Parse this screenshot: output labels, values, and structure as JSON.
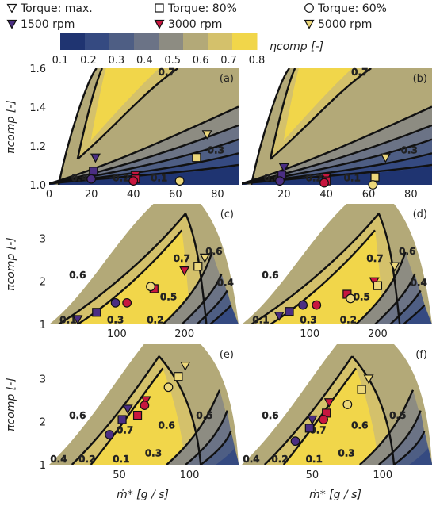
{
  "legend": {
    "markers": [
      {
        "label": "Torque: max.",
        "shape": "triangle-down"
      },
      {
        "label": "Torque: 80%",
        "shape": "square"
      },
      {
        "label": "Torque: 60%",
        "shape": "circle"
      }
    ],
    "speeds": [
      {
        "label": "1500 rpm",
        "color": "#4b2e83"
      },
      {
        "label": "3000 rpm",
        "color": "#c8163f"
      },
      {
        "label": "5000 rpm",
        "color": "#ecd77a"
      }
    ]
  },
  "colorbar": {
    "label": "ηcomp [-]",
    "ticks": [
      "0.1",
      "0.2",
      "0.3",
      "0.4",
      "0.5",
      "0.6",
      "0.7",
      "0.8"
    ],
    "colors": [
      "#1f3471",
      "#354a81",
      "#4e5e84",
      "#6b7386",
      "#8d8c82",
      "#b3a978",
      "#d4c16b",
      "#f1d64a"
    ]
  },
  "axes": {
    "ylabel": "πcomp [-]",
    "xlabel": "ṁ* [g / s]"
  },
  "chart_data": [
    {
      "panel": "(a)",
      "type": "contour",
      "xlim": [
        0,
        90
      ],
      "ylim": [
        1.0,
        1.6
      ],
      "xticks": [
        "0",
        "20",
        "40",
        "60",
        "80"
      ],
      "yticks": [
        "1.0",
        "1.2",
        "1.4",
        "1.6"
      ],
      "contour_labels": [
        "0.7",
        "0.3",
        "0.4",
        "0.2",
        "0.1"
      ],
      "points": [
        {
          "speed": "1500 rpm",
          "torque": "max.",
          "x": 22,
          "y": 1.14
        },
        {
          "speed": "1500 rpm",
          "torque": "80%",
          "x": 21,
          "y": 1.07
        },
        {
          "speed": "1500 rpm",
          "torque": "60%",
          "x": 20,
          "y": 1.03
        },
        {
          "speed": "3000 rpm",
          "torque": "max.",
          "x": 41,
          "y": 1.05
        },
        {
          "speed": "3000 rpm",
          "torque": "80%",
          "x": 41,
          "y": 1.03
        },
        {
          "speed": "3000 rpm",
          "torque": "60%",
          "x": 40,
          "y": 1.02
        },
        {
          "speed": "5000 rpm",
          "torque": "max.",
          "x": 75,
          "y": 1.26
        },
        {
          "speed": "5000 rpm",
          "torque": "80%",
          "x": 70,
          "y": 1.14
        },
        {
          "speed": "5000 rpm",
          "torque": "60%",
          "x": 62,
          "y": 1.02
        }
      ]
    },
    {
      "panel": "(b)",
      "type": "contour",
      "xlim": [
        0,
        90
      ],
      "ylim": [
        1.0,
        1.6
      ],
      "xticks": [
        "20",
        "40",
        "60",
        "80"
      ],
      "contour_labels": [
        "0.7",
        "0.3",
        "0.4",
        "0.2",
        "0.1"
      ],
      "points": [
        {
          "speed": "1500 rpm",
          "torque": "max.",
          "x": 20,
          "y": 1.09
        },
        {
          "speed": "1500 rpm",
          "torque": "80%",
          "x": 19,
          "y": 1.05
        },
        {
          "speed": "1500 rpm",
          "torque": "60%",
          "x": 18,
          "y": 1.02
        },
        {
          "speed": "3000 rpm",
          "torque": "max.",
          "x": 40,
          "y": 1.04
        },
        {
          "speed": "3000 rpm",
          "torque": "80%",
          "x": 40,
          "y": 1.02
        },
        {
          "speed": "3000 rpm",
          "torque": "60%",
          "x": 39,
          "y": 1.01
        },
        {
          "speed": "5000 rpm",
          "torque": "max.",
          "x": 68,
          "y": 1.14
        },
        {
          "speed": "5000 rpm",
          "torque": "80%",
          "x": 63,
          "y": 1.04
        },
        {
          "speed": "5000 rpm",
          "torque": "60%",
          "x": 62,
          "y": 1.0
        }
      ]
    },
    {
      "panel": "(c)",
      "type": "contour",
      "xlim": [
        0,
        280
      ],
      "ylim": [
        1,
        3.8
      ],
      "xticks": [
        "100",
        "200"
      ],
      "yticks": [
        "1",
        "2",
        "3"
      ],
      "contour_labels": [
        "0.6",
        "0.7",
        "0.6",
        "0.5",
        "0.4",
        "0.1",
        "0.3",
        "0.2"
      ],
      "points": [
        {
          "speed": "1500 rpm",
          "torque": "max.",
          "x": 42,
          "y": 1.12
        },
        {
          "speed": "1500 rpm",
          "torque": "80%",
          "x": 70,
          "y": 1.28
        },
        {
          "speed": "1500 rpm",
          "torque": "60%",
          "x": 98,
          "y": 1.5
        },
        {
          "speed": "3000 rpm",
          "torque": "max.",
          "x": 200,
          "y": 2.25
        },
        {
          "speed": "3000 rpm",
          "torque": "80%",
          "x": 155,
          "y": 1.83
        },
        {
          "speed": "3000 rpm",
          "torque": "60%",
          "x": 115,
          "y": 1.5
        },
        {
          "speed": "5000 rpm",
          "torque": "max.",
          "x": 230,
          "y": 2.55
        },
        {
          "speed": "5000 rpm",
          "torque": "80%",
          "x": 220,
          "y": 2.35
        },
        {
          "speed": "5000 rpm",
          "torque": "60%",
          "x": 150,
          "y": 1.88
        }
      ]
    },
    {
      "panel": "(d)",
      "type": "contour",
      "xlim": [
        0,
        280
      ],
      "ylim": [
        1,
        3.8
      ],
      "xticks": [
        "100",
        "200"
      ],
      "contour_labels": [
        "0.6",
        "0.7",
        "0.6",
        "0.5",
        "0.4",
        "0.1",
        "0.3",
        "0.2"
      ],
      "points": [
        {
          "speed": "1500 rpm",
          "torque": "max.",
          "x": 55,
          "y": 1.2
        },
        {
          "speed": "1500 rpm",
          "torque": "80%",
          "x": 70,
          "y": 1.3
        },
        {
          "speed": "1500 rpm",
          "torque": "60%",
          "x": 90,
          "y": 1.45
        },
        {
          "speed": "3000 rpm",
          "torque": "max.",
          "x": 195,
          "y": 2.0
        },
        {
          "speed": "3000 rpm",
          "torque": "80%",
          "x": 155,
          "y": 1.7
        },
        {
          "speed": "3000 rpm",
          "torque": "60%",
          "x": 110,
          "y": 1.45
        },
        {
          "speed": "5000 rpm",
          "torque": "max.",
          "x": 225,
          "y": 2.35
        },
        {
          "speed": "5000 rpm",
          "torque": "80%",
          "x": 200,
          "y": 1.9
        },
        {
          "speed": "5000 rpm",
          "torque": "60%",
          "x": 160,
          "y": 1.6
        }
      ]
    },
    {
      "panel": "(e)",
      "type": "contour",
      "xlim": [
        0,
        135
      ],
      "ylim": [
        1,
        3.8
      ],
      "xticks": [
        "50",
        "100"
      ],
      "yticks": [
        "1",
        "2",
        "3"
      ],
      "contour_labels": [
        "0.6",
        "0.7",
        "0.6",
        "0.5",
        "0.4",
        "0.2",
        "0.1",
        "0.3"
      ],
      "points": [
        {
          "speed": "1500 rpm",
          "torque": "max.",
          "x": 56,
          "y": 2.3
        },
        {
          "speed": "1500 rpm",
          "torque": "80%",
          "x": 52,
          "y": 2.05
        },
        {
          "speed": "1500 rpm",
          "torque": "60%",
          "x": 43,
          "y": 1.7
        },
        {
          "speed": "3000 rpm",
          "torque": "max.",
          "x": 69,
          "y": 2.5
        },
        {
          "speed": "3000 rpm",
          "torque": "80%",
          "x": 63,
          "y": 2.15
        },
        {
          "speed": "3000 rpm",
          "torque": "60%",
          "x": 68,
          "y": 2.38
        },
        {
          "speed": "5000 rpm",
          "torque": "max.",
          "x": 97,
          "y": 3.3
        },
        {
          "speed": "5000 rpm",
          "torque": "80%",
          "x": 92,
          "y": 3.05
        },
        {
          "speed": "5000 rpm",
          "torque": "60%",
          "x": 85,
          "y": 2.8
        }
      ]
    },
    {
      "panel": "(f)",
      "type": "contour",
      "xlim": [
        0,
        135
      ],
      "ylim": [
        1,
        3.8
      ],
      "xticks": [
        "50",
        "100"
      ],
      "contour_labels": [
        "0.6",
        "0.7",
        "0.6",
        "0.5",
        "0.4",
        "0.2",
        "0.1",
        "0.3"
      ],
      "points": [
        {
          "speed": "1500 rpm",
          "torque": "max.",
          "x": 50,
          "y": 2.05
        },
        {
          "speed": "1500 rpm",
          "torque": "80%",
          "x": 48,
          "y": 1.85
        },
        {
          "speed": "1500 rpm",
          "torque": "60%",
          "x": 38,
          "y": 1.55
        },
        {
          "speed": "3000 rpm",
          "torque": "max.",
          "x": 62,
          "y": 2.45
        },
        {
          "speed": "3000 rpm",
          "torque": "80%",
          "x": 60,
          "y": 2.2
        },
        {
          "speed": "3000 rpm",
          "torque": "60%",
          "x": 58,
          "y": 2.05
        },
        {
          "speed": "5000 rpm",
          "torque": "max.",
          "x": 90,
          "y": 3.0
        },
        {
          "speed": "5000 rpm",
          "torque": "80%",
          "x": 85,
          "y": 2.75
        },
        {
          "speed": "5000 rpm",
          "torque": "60%",
          "x": 75,
          "y": 2.4
        }
      ]
    }
  ]
}
